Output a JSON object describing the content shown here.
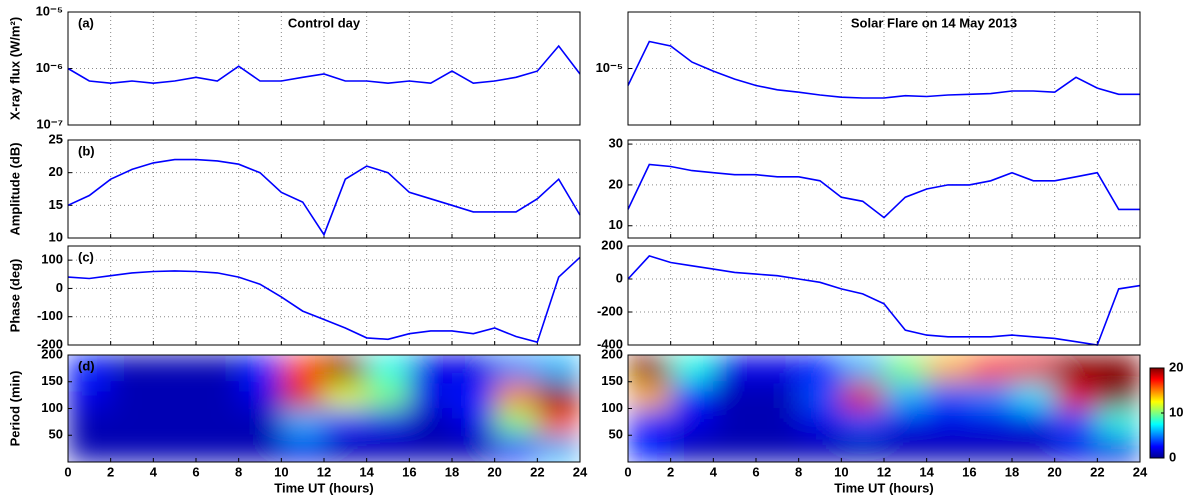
{
  "chart_data": [
    {
      "type": "line",
      "title": "Control day",
      "label": "(a)",
      "ylabel": "X-ray flux (W/m²)",
      "color": "#0000ff",
      "log": true,
      "grid": true,
      "x": [
        0,
        1,
        2,
        3,
        4,
        5,
        6,
        7,
        8,
        9,
        10,
        11,
        12,
        13,
        14,
        15,
        16,
        17,
        18,
        19,
        20,
        21,
        22,
        23,
        24
      ],
      "values": [
        1e-06,
        6e-07,
        5.5e-07,
        6e-07,
        5.5e-07,
        6e-07,
        7e-07,
        6e-07,
        1.1e-06,
        6e-07,
        6e-07,
        7e-07,
        8e-07,
        6e-07,
        6e-07,
        5.5e-07,
        6e-07,
        5.5e-07,
        9e-07,
        5.5e-07,
        6e-07,
        7e-07,
        9e-07,
        2.5e-06,
        8e-07
      ],
      "xlim": [
        0,
        24
      ],
      "xticks": [
        0,
        2,
        4,
        6,
        8,
        10,
        12,
        14,
        16,
        18,
        20,
        22,
        24
      ],
      "ylim": [
        1e-07,
        1e-05
      ],
      "yticks": [
        {
          "value": 1e-07,
          "label": "10⁻⁷"
        },
        {
          "value": 1e-06,
          "label": "10⁻⁶"
        },
        {
          "value": 1e-05,
          "label": "10⁻⁵"
        }
      ]
    },
    {
      "type": "line",
      "label": "(b)",
      "ylabel": "Amplitude (dB)",
      "color": "#0000ff",
      "grid": true,
      "x": [
        0,
        1,
        2,
        3,
        4,
        5,
        6,
        7,
        8,
        9,
        10,
        11,
        12,
        13,
        14,
        15,
        16,
        17,
        18,
        19,
        20,
        21,
        22,
        23,
        24
      ],
      "values": [
        15,
        16.5,
        19,
        20.5,
        21.5,
        22,
        22,
        21.8,
        21.3,
        20,
        17,
        15.5,
        10.5,
        19,
        21,
        20,
        17,
        16,
        15,
        14,
        14,
        14,
        16,
        19,
        13.5
      ],
      "xlim": [
        0,
        24
      ],
      "xticks": [
        0,
        2,
        4,
        6,
        8,
        10,
        12,
        14,
        16,
        18,
        20,
        22,
        24
      ],
      "ylim": [
        10,
        25
      ],
      "yticks": [
        10,
        15,
        20,
        25
      ]
    },
    {
      "type": "line",
      "label": "(c)",
      "ylabel": "Phase (deg)",
      "color": "#0000ff",
      "grid": true,
      "x": [
        0,
        1,
        2,
        3,
        4,
        5,
        6,
        7,
        8,
        9,
        10,
        11,
        12,
        13,
        14,
        15,
        16,
        17,
        18,
        19,
        20,
        21,
        22,
        23,
        24
      ],
      "values": [
        40,
        35,
        45,
        55,
        60,
        62,
        60,
        55,
        40,
        15,
        -30,
        -80,
        -110,
        -140,
        -175,
        -180,
        -160,
        -150,
        -150,
        -160,
        -140,
        -170,
        -190,
        40,
        110
      ],
      "xlim": [
        0,
        24
      ],
      "xticks": [
        0,
        2,
        4,
        6,
        8,
        10,
        12,
        14,
        16,
        18,
        20,
        22,
        24
      ],
      "ylim": [
        -200,
        150
      ],
      "yticks": [
        -200,
        -100,
        0,
        100
      ]
    },
    {
      "type": "heatmap",
      "label": "(d)",
      "ylabel": "Period (min)",
      "xlabel": "Time UT (hours)",
      "colormap": "jet",
      "clim": [
        0,
        20
      ],
      "xbins": [
        0,
        2,
        4,
        6,
        8,
        10,
        12,
        14,
        16,
        18,
        20,
        22,
        24
      ],
      "ybins": [
        0,
        50,
        100,
        150,
        200
      ],
      "z": [
        [
          1,
          1,
          1,
          1,
          1,
          2,
          1,
          1,
          1,
          1,
          3,
          6
        ],
        [
          1,
          1,
          1,
          1,
          1,
          6,
          3,
          2,
          1,
          2,
          10,
          16
        ],
        [
          2,
          1,
          1,
          1,
          2,
          18,
          12,
          10,
          2,
          3,
          15,
          20
        ],
        [
          3,
          1,
          1,
          1,
          3,
          16,
          20,
          8,
          2,
          2,
          5,
          6
        ]
      ],
      "xlim": [
        0,
        24
      ],
      "xticks": [
        0,
        2,
        4,
        6,
        8,
        10,
        12,
        14,
        16,
        18,
        20,
        22,
        24
      ],
      "ylim": [
        0,
        200
      ],
      "yticks": [
        50,
        100,
        150,
        200
      ]
    },
    {
      "type": "line",
      "title": "Solar Flare on 14 May 2013",
      "color": "#0000ff",
      "log": true,
      "grid": true,
      "x": [
        0,
        1,
        2,
        3,
        4,
        5,
        6,
        7,
        8,
        9,
        10,
        11,
        12,
        13,
        14,
        15,
        16,
        17,
        18,
        19,
        20,
        21,
        22,
        23,
        24
      ],
      "values": [
        5e-06,
        3e-05,
        2.5e-05,
        1.3e-05,
        9e-06,
        6.5e-06,
        5e-06,
        4.2e-06,
        3.8e-06,
        3.4e-06,
        3.1e-06,
        3e-06,
        3e-06,
        3.3e-06,
        3.2e-06,
        3.4e-06,
        3.5e-06,
        3.6e-06,
        4e-06,
        4e-06,
        3.8e-06,
        7e-06,
        4.5e-06,
        3.5e-06,
        3.5e-06
      ],
      "xlim": [
        0,
        24
      ],
      "xticks": [
        0,
        2,
        4,
        6,
        8,
        10,
        12,
        14,
        16,
        18,
        20,
        22,
        24
      ],
      "ylim": [
        1e-06,
        0.0001
      ],
      "yticks": [
        {
          "value": 1e-05,
          "label": "10⁻⁵"
        }
      ]
    },
    {
      "type": "line",
      "color": "#0000ff",
      "grid": true,
      "x": [
        0,
        1,
        2,
        3,
        4,
        5,
        6,
        7,
        8,
        9,
        10,
        11,
        12,
        13,
        14,
        15,
        16,
        17,
        18,
        19,
        20,
        21,
        22,
        23,
        24
      ],
      "values": [
        14,
        25,
        24.5,
        23.5,
        23,
        22.5,
        22.5,
        22,
        22,
        21,
        17,
        16,
        12,
        17,
        19,
        20,
        20,
        21,
        23,
        21,
        21,
        22,
        23,
        14,
        14
      ],
      "xlim": [
        0,
        24
      ],
      "xticks": [
        0,
        2,
        4,
        6,
        8,
        10,
        12,
        14,
        16,
        18,
        20,
        22,
        24
      ],
      "ylim": [
        7,
        31
      ],
      "yticks": [
        10,
        20,
        30
      ]
    },
    {
      "type": "line",
      "color": "#0000ff",
      "grid": true,
      "x": [
        0,
        1,
        2,
        3,
        4,
        5,
        6,
        7,
        8,
        9,
        10,
        11,
        12,
        13,
        14,
        15,
        16,
        17,
        18,
        19,
        20,
        21,
        22,
        23,
        24
      ],
      "values": [
        0,
        140,
        100,
        80,
        60,
        40,
        30,
        20,
        0,
        -20,
        -60,
        -90,
        -150,
        -310,
        -340,
        -350,
        -350,
        -350,
        -340,
        -350,
        -360,
        -380,
        -400,
        -60,
        -40
      ],
      "xlim": [
        0,
        24
      ],
      "xticks": [
        0,
        2,
        4,
        6,
        8,
        10,
        12,
        14,
        16,
        18,
        20,
        22,
        24
      ],
      "ylim": [
        -400,
        200
      ],
      "yticks": [
        -400,
        -200,
        0,
        200
      ]
    },
    {
      "type": "heatmap",
      "xlabel": "Time UT (hours)",
      "colormap": "jet",
      "clim": [
        0,
        20
      ],
      "cticks": [
        0,
        10,
        20
      ],
      "xbins": [
        0,
        2,
        4,
        6,
        8,
        10,
        12,
        14,
        16,
        18,
        20,
        22,
        24
      ],
      "ybins": [
        0,
        50,
        100,
        150,
        200
      ],
      "z": [
        [
          3,
          1,
          1,
          1,
          1,
          1,
          1,
          1,
          1,
          1,
          2,
          2
        ],
        [
          3,
          2,
          1,
          1,
          2,
          4,
          2,
          2,
          2,
          2,
          4,
          8
        ],
        [
          14,
          3,
          1,
          1,
          4,
          18,
          6,
          4,
          5,
          7,
          18,
          20
        ],
        [
          20,
          8,
          2,
          2,
          3,
          6,
          10,
          14,
          16,
          18,
          20,
          20
        ]
      ],
      "xlim": [
        0,
        24
      ],
      "xticks": [
        0,
        2,
        4,
        6,
        8,
        10,
        12,
        14,
        16,
        18,
        20,
        22,
        24
      ],
      "ylim": [
        0,
        200
      ],
      "yticks": [
        50,
        100,
        150,
        200
      ]
    }
  ]
}
